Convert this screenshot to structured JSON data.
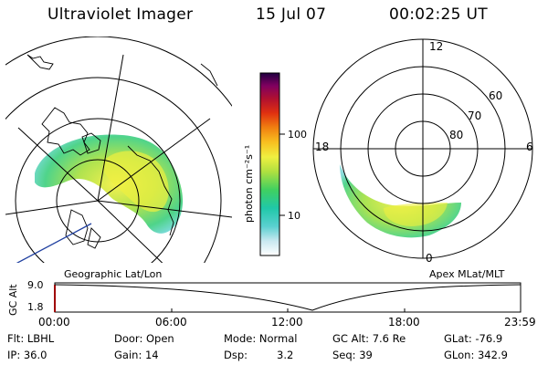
{
  "header": {
    "instrument": "Ultraviolet Imager",
    "date": "15 Jul 07",
    "time": "00:02:25 UT"
  },
  "colorbar": {
    "units": "photon cm⁻²s⁻¹",
    "ticks": [
      "100",
      "10"
    ]
  },
  "left_panel": {
    "caption": "Geographic Lat/Lon"
  },
  "right_panel": {
    "caption": "Apex MLat/MLT",
    "mlt_labels": [
      "12",
      "18",
      "6",
      "0"
    ],
    "mlat_labels": [
      "60",
      "70",
      "80"
    ]
  },
  "altitude_plot": {
    "ylabel": "GC Alt",
    "yticks": [
      "9.0",
      "1.8"
    ],
    "xticks": [
      "00:00",
      "06:00",
      "12:00",
      "18:00",
      "23:59"
    ]
  },
  "info": {
    "row1": [
      "Flt: LBHL",
      "Door: Open",
      "Mode: Normal",
      "GC Alt: 7.6 Re",
      "GLat: -76.9"
    ],
    "row2": [
      "IP: 36.0",
      "Gain: 14",
      "Dsp:",
      "3.2",
      "Seq: 39",
      "GLon: 342.9"
    ]
  }
}
